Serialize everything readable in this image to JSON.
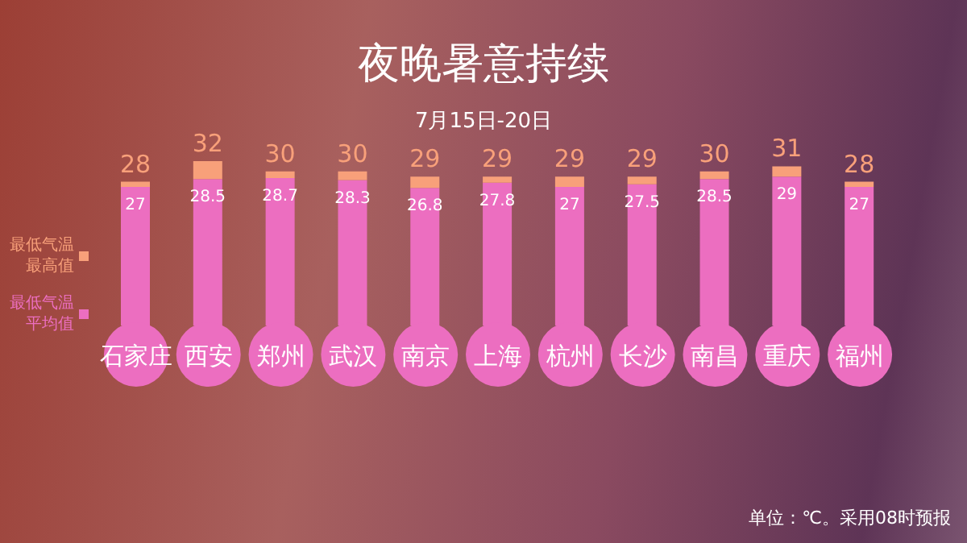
{
  "chart_data": {
    "type": "bar",
    "title": "夜晚暑意持续",
    "subtitle": "7月15日-20日",
    "annotations": [
      "单位：℃。采用08时预报"
    ],
    "categories": [
      "石家庄",
      "西安",
      "郑州",
      "武汉",
      "南京",
      "上海",
      "杭州",
      "长沙",
      "南昌",
      "重庆",
      "福州"
    ],
    "stacked": true,
    "series": [
      {
        "name": "最低气温平均值",
        "color": "#ec6ec0",
        "values": [
          27,
          28.5,
          28.7,
          28.3,
          26.8,
          27.8,
          27,
          27.5,
          28.5,
          29,
          27
        ],
        "value_labels": [
          "27",
          "28.5",
          "28.7",
          "28.3",
          "26.8",
          "27.8",
          "27",
          "27.5",
          "28.5",
          "29",
          "27"
        ]
      },
      {
        "name": "最低气温最高值",
        "color": "#f8a07a",
        "values": [
          1,
          3.5,
          1.3,
          1.7,
          2.2,
          1.2,
          2,
          1.5,
          1.5,
          2,
          1
        ]
      }
    ],
    "totals": [
      "28",
      "32",
      "30",
      "30",
      "29",
      "29",
      "29",
      "29",
      "30",
      "31",
      "28"
    ],
    "legend": "left",
    "tick_labels": "x"
  }
}
